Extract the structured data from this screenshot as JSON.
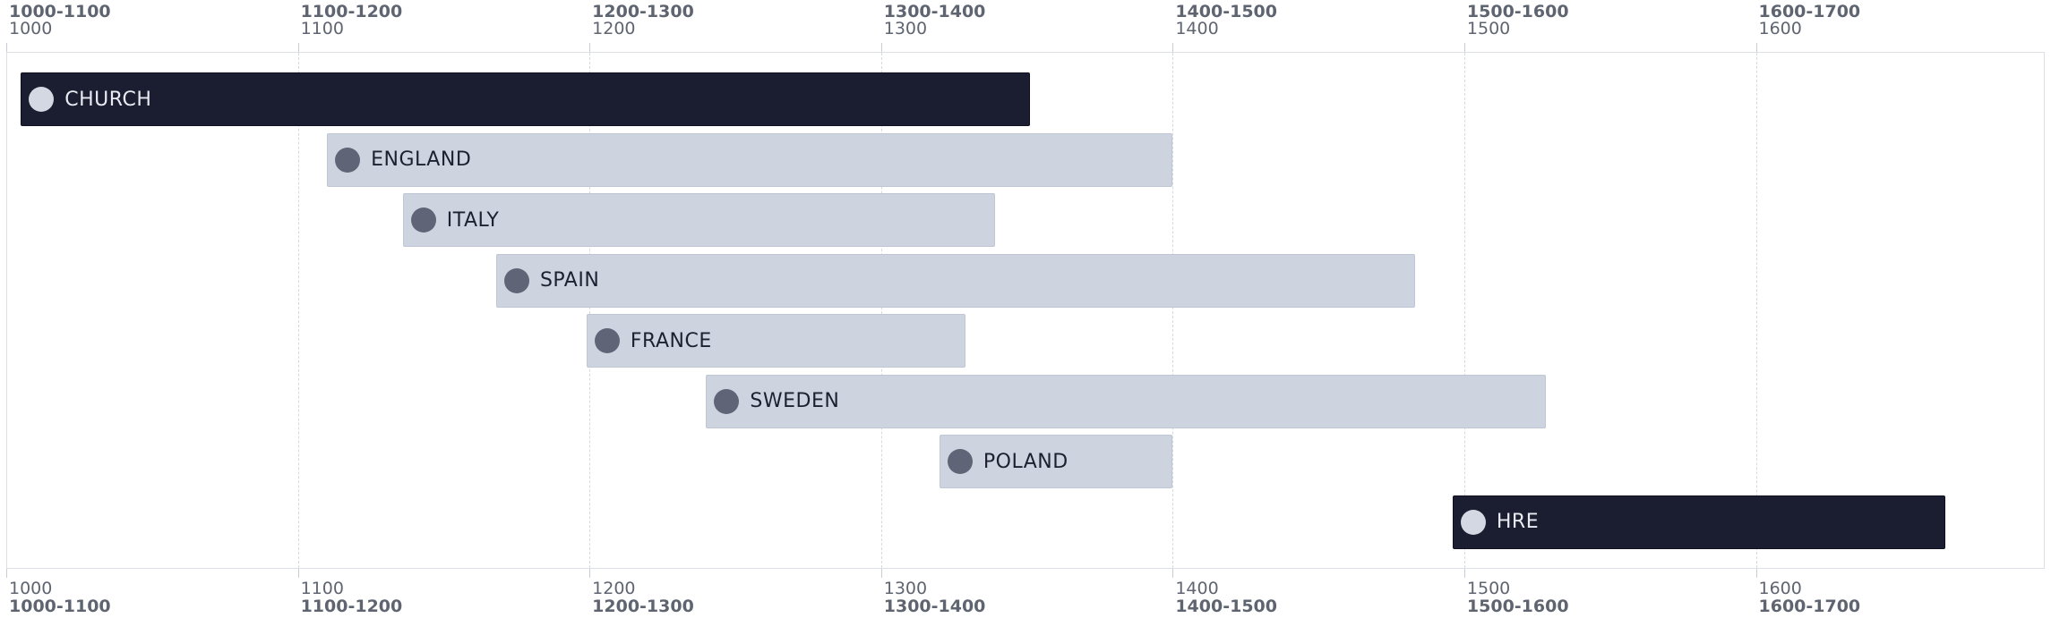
{
  "chart_data": {
    "type": "timeline",
    "axis": {
      "min": 1000,
      "max": 1700,
      "ticks": [
        {
          "year": 1000,
          "range": "1000-1100",
          "label": "1000"
        },
        {
          "year": 1100,
          "range": "1100-1200",
          "label": "1100"
        },
        {
          "year": 1200,
          "range": "1200-1300",
          "label": "1200"
        },
        {
          "year": 1300,
          "range": "1300-1400",
          "label": "1300"
        },
        {
          "year": 1400,
          "range": "1400-1500",
          "label": "1400"
        },
        {
          "year": 1500,
          "range": "1500-1600",
          "label": "1500"
        },
        {
          "year": 1600,
          "range": "1600-1700",
          "label": "1600"
        }
      ]
    },
    "grid": true,
    "items": [
      {
        "name": "CHURCH",
        "start": 1005,
        "end": 1351,
        "style": "dark"
      },
      {
        "name": "ENGLAND",
        "start": 1110,
        "end": 1400,
        "style": "light"
      },
      {
        "name": "ITALY",
        "start": 1136,
        "end": 1339,
        "style": "light"
      },
      {
        "name": "SPAIN",
        "start": 1168,
        "end": 1483,
        "style": "light"
      },
      {
        "name": "FRANCE",
        "start": 1199,
        "end": 1329,
        "style": "light"
      },
      {
        "name": "SWEDEN",
        "start": 1240,
        "end": 1528,
        "style": "light"
      },
      {
        "name": "POLAND",
        "start": 1320,
        "end": 1400,
        "style": "light"
      },
      {
        "name": "HRE",
        "start": 1496,
        "end": 1665,
        "style": "dark"
      }
    ],
    "colors": {
      "dark_bar": "#1b1e30",
      "light_bar": "#cdd3df",
      "dark_dot": "#d4d8e2",
      "light_dot": "#5f6577"
    }
  }
}
